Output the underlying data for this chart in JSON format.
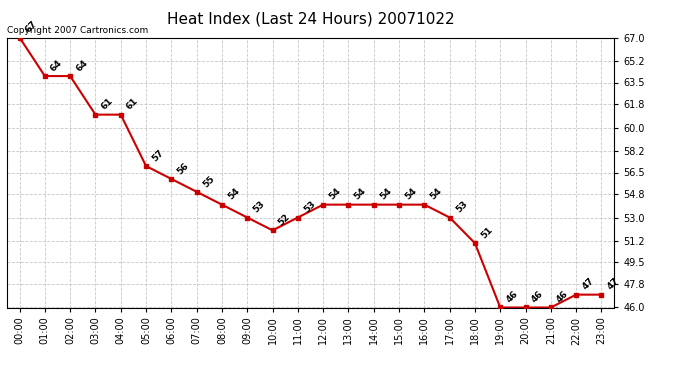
{
  "title": "Heat Index (Last 24 Hours) 20071022",
  "copyright_text": "Copyright 2007 Cartronics.com",
  "x_labels": [
    "00:00",
    "01:00",
    "02:00",
    "03:00",
    "04:00",
    "05:00",
    "06:00",
    "07:00",
    "08:00",
    "09:00",
    "10:00",
    "11:00",
    "12:00",
    "13:00",
    "14:00",
    "15:00",
    "16:00",
    "17:00",
    "18:00",
    "19:00",
    "20:00",
    "21:00",
    "22:00",
    "23:00"
  ],
  "y_values": [
    67,
    64,
    64,
    61,
    61,
    57,
    56,
    55,
    54,
    53,
    52,
    53,
    54,
    54,
    54,
    54,
    54,
    53,
    51,
    46,
    46,
    46,
    47,
    47
  ],
  "point_labels": [
    "67",
    "64",
    "64",
    "61",
    "61",
    "57",
    "56",
    "55",
    "54",
    "53",
    "52",
    "53",
    "54",
    "54",
    "54",
    "54",
    "54",
    "53",
    "51",
    "46",
    "46",
    "46",
    "47",
    "47"
  ],
  "line_color": "#cc0000",
  "marker_color": "#cc0000",
  "bg_color": "#ffffff",
  "grid_color": "#c8c8c8",
  "ylim_min": 46.0,
  "ylim_max": 67.0,
  "yticks": [
    46.0,
    47.8,
    49.5,
    51.2,
    53.0,
    54.8,
    56.5,
    58.2,
    60.0,
    61.8,
    63.5,
    65.2,
    67.0
  ],
  "title_fontsize": 11,
  "label_fontsize": 6.5,
  "tick_fontsize": 7,
  "copyright_fontsize": 6.5
}
